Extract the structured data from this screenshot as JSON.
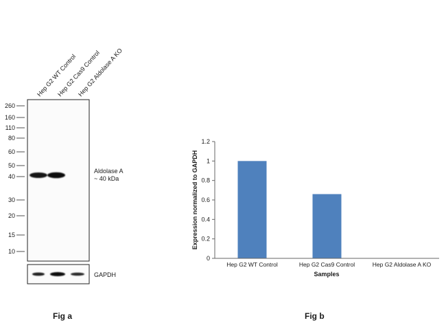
{
  "fig_a": {
    "label": "Fig a",
    "lanes": [
      "Hep G2 WT Control",
      "Hep G2 Cas9 Control",
      "Hep G2 Aldolase A KO"
    ],
    "markers": [
      "260",
      "160",
      "110",
      "80",
      "60",
      "50",
      "40",
      "30",
      "20",
      "15",
      "10"
    ],
    "band_label_line1": "Aldolase A",
    "band_label_line2": "~ 40 kDa",
    "loading_label": "GAPDH"
  },
  "fig_b": {
    "label": "Fig b",
    "bar_color": "#4f81bd",
    "chart_data": {
      "type": "bar",
      "categories": [
        "Hep G2 WT Control",
        "Hep G2 Cas9 Control",
        "Hep G2 Aldolase A KO"
      ],
      "values": [
        1.0,
        0.66,
        0.0
      ],
      "ylim": [
        0,
        1.2
      ],
      "yticks": [
        "0",
        "0.2",
        "0.4",
        "0.6",
        "0.8",
        "1",
        "1.2"
      ],
      "xlabel": "Samples",
      "ylabel": "Expression  normalized to GAPDH",
      "grid": false,
      "legend": "none"
    }
  }
}
